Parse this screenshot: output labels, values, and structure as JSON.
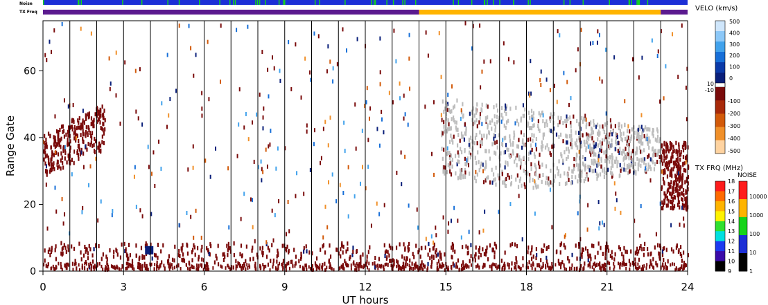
{
  "chart_data": {
    "type": "heatmap",
    "title": "",
    "xlabel": "UT hours",
    "ylabel": "Range Gate",
    "xlim": [
      0,
      24
    ],
    "ylim": [
      0,
      75
    ],
    "x_ticks": [
      "0",
      "3",
      "6",
      "9",
      "12",
      "15",
      "18",
      "21",
      "24"
    ],
    "y_ticks": [
      "0",
      "20",
      "40",
      "60"
    ],
    "grid": "vertical lines every hour",
    "strips": {
      "noise_label": "Noise",
      "freq_label": "TX Freq",
      "noise_color": "#1c2fd6",
      "noise_green_color": "#16d41a",
      "freq_segments": [
        {
          "start": 0,
          "end": 14,
          "color": "#5b1a8f"
        },
        {
          "start": 14,
          "end": 23,
          "color": "#ffb400"
        },
        {
          "start": 23,
          "end": 24,
          "color": "#5b1a8f"
        }
      ]
    },
    "velocity_scale": {
      "title": "VELO (km/s)",
      "positive_ticks": [
        "500",
        "400",
        "300",
        "200",
        "100",
        "0"
      ],
      "positive_colors": [
        "#cfe6fb",
        "#8cc8f8",
        "#41a2ec",
        "#176fd8",
        "#0b3aa8",
        "#0a1f7a"
      ],
      "mid_labels": [
        "10",
        "-10"
      ],
      "negative_ticks": [
        "-100",
        "-200",
        "-300",
        "-400",
        "-500"
      ],
      "negative_colors": [
        "#7a0b0b",
        "#a82a0a",
        "#d25a0a",
        "#f0902a",
        "#ffd3a0"
      ]
    },
    "freq_scale": {
      "title": "TX FRQ (MHz)",
      "ticks": [
        "18",
        "17",
        "16",
        "15",
        "14",
        "13",
        "12",
        "11",
        "10",
        "9"
      ],
      "colors": [
        "#ff1c1c",
        "#ff6a00",
        "#ffb400",
        "#fff200",
        "#2fe02f",
        "#00e0e0",
        "#1c3af0",
        "#3a0aa8",
        "#000000"
      ]
    },
    "noise_scale": {
      "title": "NOISE",
      "ticks": [
        "10000",
        "1000",
        "100",
        "10",
        "1"
      ],
      "colors": [
        "#ff1c1c",
        "#ffb400",
        "#16d41a",
        "#1c2fd6",
        "#000000"
      ]
    },
    "ground_scatter_color": "#bdbdbd",
    "scatter_regions": [
      {
        "name": "early-backscatter",
        "x_start": 0.0,
        "x_end": 2.3,
        "y_low": 28,
        "y_high": 48,
        "color": "#7a0b0b"
      },
      {
        "name": "evening-ground-scatter",
        "x_start": 14.8,
        "x_end": 23.0,
        "y_low": 22,
        "y_high": 52,
        "color": "#bdbdbd"
      },
      {
        "name": "late-echoes",
        "x_start": 23.0,
        "x_end": 24.0,
        "y_low": 18,
        "y_high": 38,
        "color": "#7a0b0b"
      },
      {
        "name": "near-range-clutter",
        "x_start": 0.0,
        "x_end": 24.0,
        "y_low": 0,
        "y_high": 8,
        "color": "#7a0b0b"
      }
    ]
  }
}
